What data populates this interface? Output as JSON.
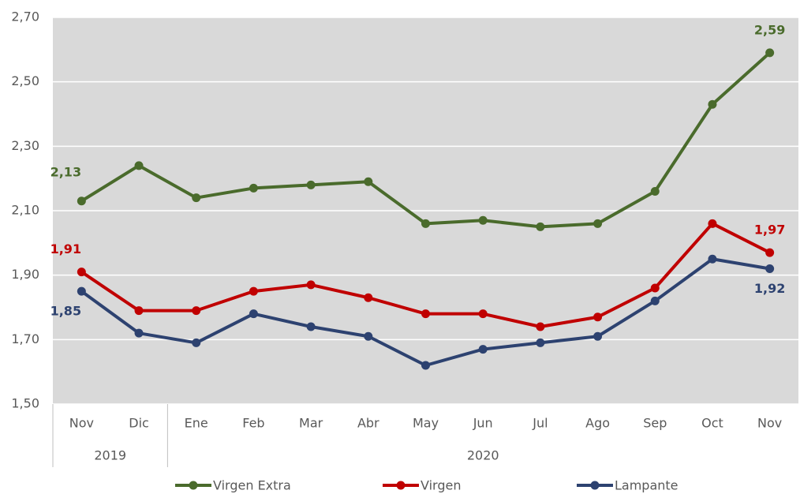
{
  "chart_data": {
    "type": "line",
    "categories": [
      "Nov",
      "Dic",
      "Ene",
      "Feb",
      "Mar",
      "Abr",
      "May",
      "Jun",
      "Jul",
      "Ago",
      "Sep",
      "Oct",
      "Nov"
    ],
    "category_groups": [
      {
        "label": "2019",
        "size": 2
      },
      {
        "label": "2020",
        "size": 11
      }
    ],
    "series": [
      {
        "name": "Virgen Extra",
        "color": "#4a6b2c",
        "values": [
          2.13,
          2.24,
          2.14,
          2.17,
          2.18,
          2.19,
          2.06,
          2.07,
          2.05,
          2.06,
          2.16,
          2.43,
          2.59
        ],
        "value_labels": [
          "2,13",
          null,
          null,
          null,
          null,
          null,
          null,
          null,
          null,
          null,
          null,
          null,
          "2,59"
        ]
      },
      {
        "name": "Virgen",
        "color": "#c00000",
        "values": [
          1.91,
          1.79,
          1.79,
          1.85,
          1.87,
          1.83,
          1.78,
          1.78,
          1.74,
          1.77,
          1.86,
          2.06,
          1.97
        ],
        "value_labels": [
          "1,91",
          null,
          null,
          null,
          null,
          null,
          null,
          null,
          null,
          null,
          null,
          null,
          "1,97"
        ]
      },
      {
        "name": "Lampante",
        "color": "#2d4270",
        "values": [
          1.85,
          1.72,
          1.69,
          1.78,
          1.74,
          1.71,
          1.62,
          1.67,
          1.69,
          1.71,
          1.82,
          1.95,
          1.92
        ],
        "value_labels": [
          "1,85",
          null,
          null,
          null,
          null,
          null,
          null,
          null,
          null,
          null,
          null,
          null,
          "1,92"
        ]
      }
    ],
    "ylim": [
      1.5,
      2.7
    ],
    "yticks": [
      {
        "value": 1.5,
        "label": "1,50"
      },
      {
        "value": 1.7,
        "label": "1,70"
      },
      {
        "value": 1.9,
        "label": "1,90"
      },
      {
        "value": 2.1,
        "label": "2,10"
      },
      {
        "value": 2.3,
        "label": "2,30"
      },
      {
        "value": 2.5,
        "label": "2,50"
      },
      {
        "value": 2.7,
        "label": "2,70"
      }
    ],
    "grid": true,
    "plot_background": "#d9d9d9",
    "legend": "bottom"
  }
}
